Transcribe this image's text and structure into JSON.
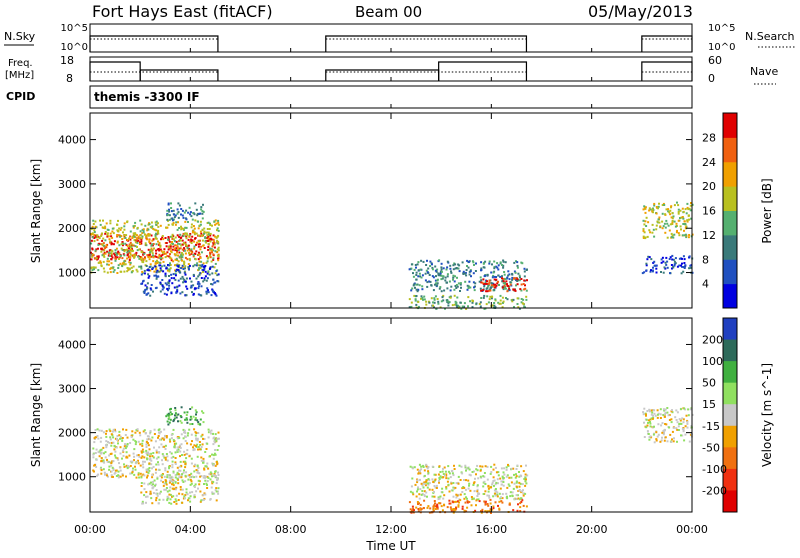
{
  "header": {
    "station": "Fort Hays East (fitACF)",
    "beam": "Beam 00",
    "date": "05/May/2013"
  },
  "panels": {
    "nsky": {
      "label": "N.Sky",
      "ticks_left": [
        "10^5",
        "10^0"
      ],
      "ticks_right": [
        "10^5",
        "10^0"
      ],
      "right_label": "N.Search"
    },
    "freq": {
      "label_line1": "Freq.",
      "label_line2": "[MHz]",
      "ticks_left": [
        "18",
        "8"
      ],
      "ticks_right": [
        "60",
        "0"
      ],
      "right_label": "Nave"
    },
    "cpid": {
      "label": "CPID",
      "text": "themis -3300 IF"
    }
  },
  "chart_data": [
    {
      "type": "heatmap",
      "name": "power",
      "ylabel": "Slant Range [km]",
      "ylim": [
        200,
        4600
      ],
      "yticks": [
        1000,
        2000,
        3000,
        4000
      ],
      "xlim": [
        0,
        24
      ],
      "colorbar": {
        "label": "Power [dB]",
        "ticks": [
          "4",
          "8",
          "12",
          "16",
          "20",
          "24",
          "28"
        ],
        "colors": [
          "#0000e0",
          "#2050c0",
          "#3a7a7a",
          "#55b070",
          "#b8c020",
          "#f0a000",
          "#f06010",
          "#e00000"
        ]
      },
      "regions": [
        {
          "t0": 0.0,
          "t1": 5.1,
          "r0": 1300,
          "r1": 1900,
          "level": 7
        },
        {
          "t0": 0.0,
          "t1": 5.1,
          "r0": 1000,
          "r1": 2200,
          "level": 4
        },
        {
          "t0": 2.0,
          "t1": 5.1,
          "r0": 500,
          "r1": 1200,
          "level": 1
        },
        {
          "t0": 3.0,
          "t1": 4.5,
          "r0": 2200,
          "r1": 2600,
          "level": 2
        },
        {
          "t0": 12.7,
          "t1": 17.4,
          "r0": 600,
          "r1": 1300,
          "level": 2
        },
        {
          "t0": 15.5,
          "t1": 17.4,
          "r0": 600,
          "r1": 900,
          "level": 7
        },
        {
          "t0": 12.7,
          "t1": 17.4,
          "r0": 200,
          "r1": 500,
          "level": 3
        },
        {
          "t0": 22.0,
          "t1": 24.0,
          "r0": 1800,
          "r1": 2600,
          "level": 4
        },
        {
          "t0": 22.0,
          "t1": 24.0,
          "r0": 1000,
          "r1": 1400,
          "level": 1
        }
      ]
    },
    {
      "type": "heatmap",
      "name": "velocity",
      "ylabel": "Slant Range [km]",
      "ylim": [
        200,
        4600
      ],
      "yticks": [
        1000,
        2000,
        3000,
        4000
      ],
      "xlim": [
        0,
        24
      ],
      "colorbar": {
        "label": "Velocity [m s^-1]",
        "ticks": [
          "200",
          "100",
          "50",
          "15",
          "-15",
          "-50",
          "-100",
          "-200"
        ],
        "colors": [
          "#2040c0",
          "#2d6a5a",
          "#40b040",
          "#90e060",
          "#c8c8c8",
          "#f0a000",
          "#f07010",
          "#f03010",
          "#e00000"
        ]
      },
      "regions": [
        {
          "t0": 0.0,
          "t1": 5.1,
          "r0": 1000,
          "r1": 2100,
          "level": 4
        },
        {
          "t0": 2.0,
          "t1": 5.1,
          "r0": 400,
          "r1": 1100,
          "level": 4
        },
        {
          "t0": 3.0,
          "t1": 4.5,
          "r0": 2200,
          "r1": 2600,
          "level": 2
        },
        {
          "t0": 12.7,
          "t1": 17.4,
          "r0": 500,
          "r1": 1300,
          "level": 4
        },
        {
          "t0": 12.7,
          "t1": 17.4,
          "r0": 200,
          "r1": 500,
          "level": 6
        },
        {
          "t0": 22.0,
          "t1": 24.0,
          "r0": 1800,
          "r1": 2600,
          "level": 4
        }
      ]
    }
  ],
  "xaxis": {
    "label": "Time UT",
    "ticks": [
      "00:00",
      "04:00",
      "08:00",
      "12:00",
      "16:00",
      "20:00",
      "00:00"
    ]
  }
}
